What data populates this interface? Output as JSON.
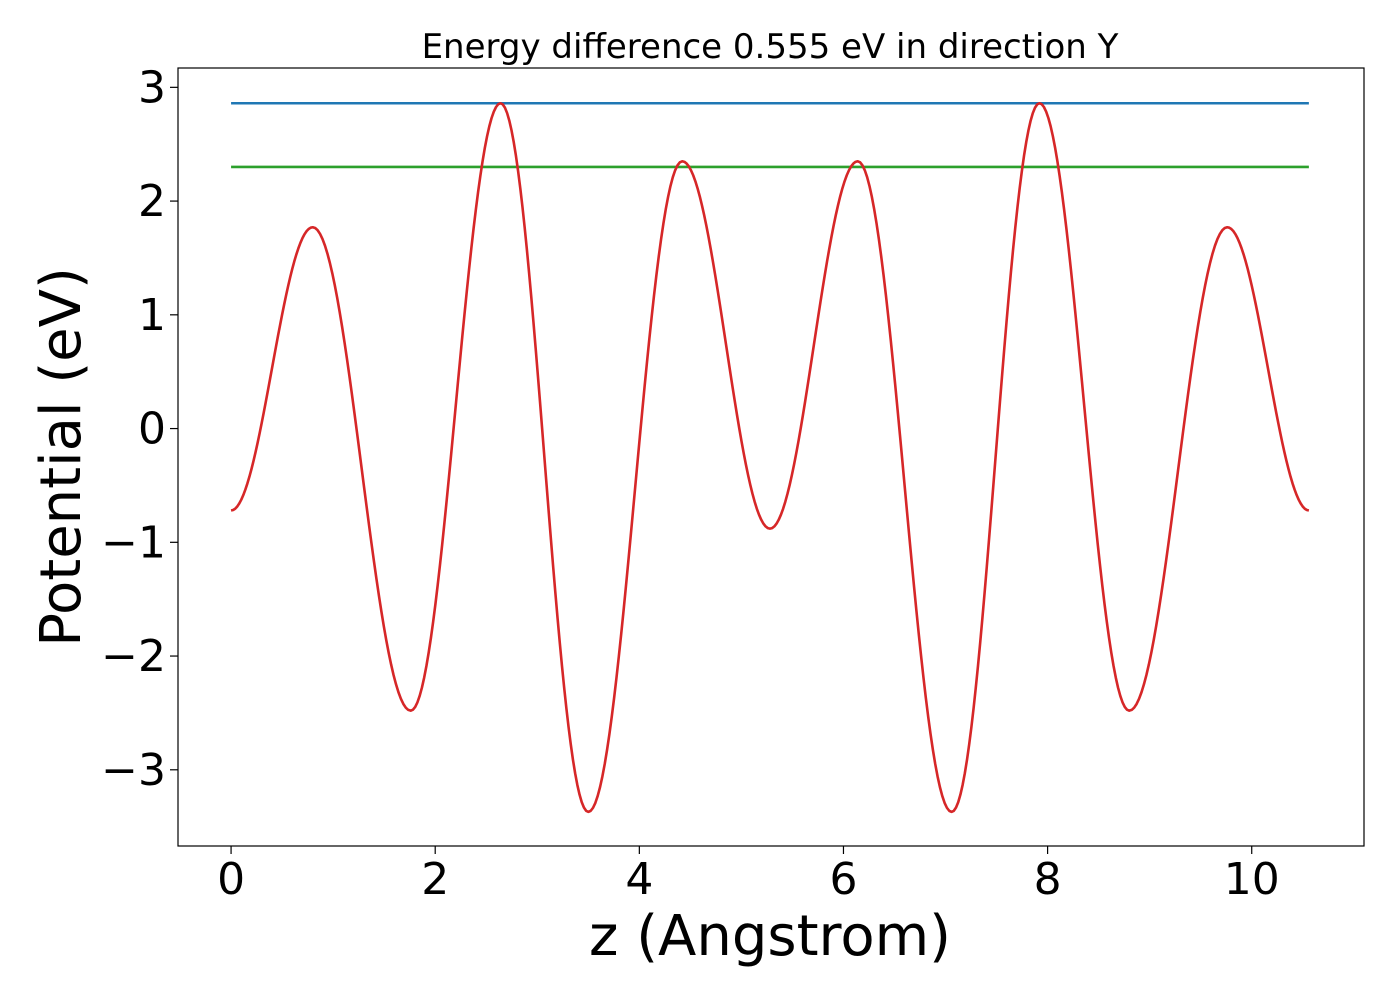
{
  "chart_data": {
    "type": "line",
    "title": "Energy difference 0.555 eV in direction Y",
    "xlabel": "z (Angstrom)",
    "ylabel": "Potential (eV)",
    "xlim": [
      -0.52,
      11.1
    ],
    "ylim": [
      -3.67,
      3.17
    ],
    "xticks": [
      0,
      2,
      4,
      6,
      8,
      10
    ],
    "xtick_labels": [
      "0",
      "2",
      "4",
      "6",
      "8",
      "10"
    ],
    "yticks": [
      -3,
      -2,
      -1,
      0,
      1,
      2,
      3
    ],
    "ytick_labels": [
      "−3",
      "−2",
      "−1",
      "0",
      "1",
      "2",
      "3"
    ],
    "grid": false,
    "legend": "none",
    "series": [
      {
        "color": "#1f77b4",
        "x": [
          0.0,
          10.56
        ],
        "y": [
          2.86,
          2.86
        ]
      },
      {
        "color": "#2ca02c",
        "x": [
          0.0,
          10.56
        ],
        "y": [
          2.3,
          2.3
        ]
      },
      {
        "color": "#d62728",
        "x": [
          0.0,
          0.8,
          1.76,
          2.64,
          3.5,
          4.42,
          5.28,
          6.14,
          7.06,
          7.92,
          8.8,
          9.76,
          10.56
        ],
        "y": [
          -0.72,
          1.77,
          -2.48,
          2.86,
          -3.37,
          2.35,
          -0.88,
          2.35,
          -3.37,
          2.86,
          -2.48,
          1.77,
          -0.72
        ]
      }
    ]
  }
}
